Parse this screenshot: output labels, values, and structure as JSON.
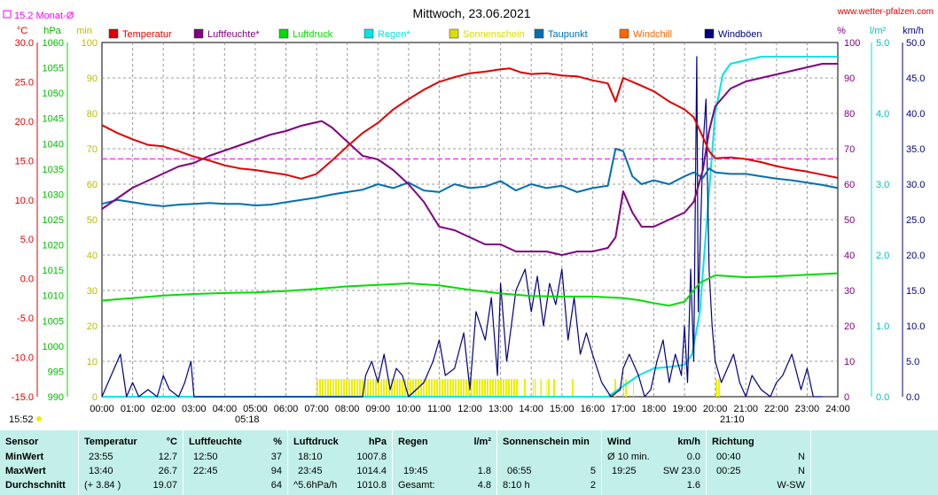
{
  "header": {
    "title": "Mittwoch, 23.06.2021",
    "website": "www.wetter-pfalzen.com",
    "monthly_avg_label": "15.2 Monat-Ø"
  },
  "units": {
    "temp": "°C",
    "pressure": "hPa",
    "sun": "min",
    "percent": "%",
    "rain": "l/m²",
    "wind": "km/h"
  },
  "legend": [
    {
      "label": "Temperatur",
      "color": "#e00000"
    },
    {
      "label": "Luftfeuchte*",
      "color": "#800080"
    },
    {
      "label": "Luftdruck",
      "color": "#00dd00"
    },
    {
      "label": "Regen*",
      "color": "#00e5e5"
    },
    {
      "label": "Sonnenschein",
      "color": "#dddd00"
    },
    {
      "label": "Taupunkt",
      "color": "#0070b0"
    },
    {
      "label": "Windchill",
      "color": "#ff6600"
    },
    {
      "label": "Windböen",
      "color": "#000080"
    }
  ],
  "annotations": {
    "sunrise": "05:18",
    "sunset": "21:10",
    "update_time": "15:52"
  },
  "chart_data": {
    "type": "line",
    "title": "Mittwoch, 23.06.2021",
    "x_labels": [
      "00:00",
      "01:00",
      "02:00",
      "03:00",
      "04:00",
      "05:00",
      "06:00",
      "07:00",
      "08:00",
      "09:00",
      "10:00",
      "11:00",
      "12:00",
      "13:00",
      "14:00",
      "15:00",
      "16:00",
      "17:00",
      "18:00",
      "19:00",
      "20:00",
      "21:00",
      "22:00",
      "23:00",
      "24:00"
    ],
    "axes": {
      "temp": {
        "unit": "°C",
        "range": [
          -15,
          30
        ],
        "ticks": [
          "30.0",
          "25.0",
          "20.0",
          "15.0",
          "10.0",
          "5.0",
          "0.0",
          "-5.0",
          "-10.0",
          "-15.0"
        ]
      },
      "pressure": {
        "unit": "hPa",
        "range": [
          990,
          1060
        ],
        "ticks": [
          "1060",
          "1055",
          "1050",
          "1045",
          "1040",
          "1035",
          "1030",
          "1025",
          "1020",
          "1015",
          "1010",
          "1005",
          "1000",
          "995",
          "990"
        ]
      },
      "sun": {
        "unit": "min",
        "range": [
          0,
          100
        ],
        "ticks": [
          "100",
          "90",
          "80",
          "70",
          "60",
          "50",
          "40",
          "30",
          "20",
          "10",
          "0"
        ]
      },
      "humidity": {
        "unit": "%",
        "range": [
          0,
          100
        ],
        "ticks": [
          "100",
          "90",
          "80",
          "70",
          "60",
          "50",
          "40",
          "30",
          "20",
          "10",
          "0"
        ]
      },
      "rain": {
        "unit": "l/m²",
        "range": [
          0,
          5
        ],
        "ticks": [
          "5.0",
          "4.0",
          "3.0",
          "2.0",
          "1.0",
          "0.0"
        ]
      },
      "wind": {
        "unit": "km/h",
        "range": [
          0,
          50
        ],
        "ticks": [
          "50.0",
          "45.0",
          "40.0",
          "35.0",
          "30.0",
          "25.0",
          "20.0",
          "15.0",
          "10.0",
          "5.0",
          "0.0"
        ]
      }
    },
    "monthly_avg_temp": 15.2,
    "series": [
      {
        "name": "Temperatur",
        "axis": "temp",
        "color": "#e00000",
        "x": [
          0,
          0.5,
          1,
          1.5,
          2,
          2.5,
          3,
          3.5,
          4,
          4.5,
          5,
          5.5,
          6,
          6.5,
          7,
          7.5,
          8,
          8.5,
          9,
          9.5,
          10,
          10.5,
          11,
          11.5,
          12,
          12.5,
          13,
          13.3,
          13.67,
          14,
          14.5,
          15,
          15.5,
          16,
          16.5,
          16.75,
          17,
          17.3,
          17.6,
          18,
          18.5,
          19,
          19.3,
          19.6,
          19.8,
          20,
          20.5,
          21,
          21.5,
          22,
          22.5,
          23,
          23.5,
          24
        ],
        "y": [
          19.5,
          18.5,
          17.7,
          17.0,
          16.8,
          16.2,
          15.5,
          15.0,
          14.4,
          14.0,
          13.8,
          13.5,
          13.2,
          12.7,
          13.3,
          15.0,
          16.8,
          18.5,
          19.8,
          21.5,
          22.8,
          24.0,
          25.0,
          25.6,
          26.1,
          26.3,
          26.6,
          26.7,
          26.2,
          26.0,
          26.1,
          25.8,
          25.7,
          25.2,
          24.8,
          22.5,
          25.5,
          25.0,
          24.5,
          23.8,
          22.5,
          21.5,
          20.5,
          18.0,
          16.2,
          15.3,
          15.4,
          15.2,
          14.8,
          14.3,
          13.9,
          13.6,
          13.2,
          12.8
        ]
      },
      {
        "name": "Luftfeuchte*",
        "axis": "humidity",
        "color": "#800080",
        "x": [
          0,
          0.5,
          1,
          1.5,
          2,
          2.5,
          3,
          3.5,
          4,
          4.5,
          5,
          5.5,
          6,
          6.5,
          7,
          7.17,
          7.5,
          8,
          8.5,
          9,
          9.5,
          10,
          10.5,
          11,
          11.5,
          12,
          12.5,
          13,
          13.5,
          14,
          14.5,
          15,
          15.5,
          16,
          16.5,
          16.75,
          17,
          17.3,
          17.6,
          18,
          18.5,
          19,
          19.3,
          19.6,
          19.8,
          20,
          20.5,
          21,
          21.5,
          22,
          22.5,
          23,
          23.5,
          24
        ],
        "y": [
          53,
          56,
          59,
          61,
          63,
          65,
          66,
          68,
          69.5,
          71,
          72.5,
          74,
          75,
          76.5,
          77.5,
          77.8,
          76,
          72,
          68,
          67,
          64,
          60,
          55,
          48,
          47,
          45,
          43,
          43,
          41,
          41,
          41,
          40,
          41,
          41,
          42,
          45,
          58,
          52,
          48,
          48,
          50,
          52,
          55,
          64,
          75,
          82,
          87,
          89,
          90,
          91,
          92,
          93,
          94,
          94
        ]
      },
      {
        "name": "Luftdruck",
        "axis": "pressure",
        "color": "#00dd00",
        "x": [
          0,
          1,
          2,
          3,
          4,
          5,
          6,
          7,
          8,
          9,
          10,
          11,
          12,
          13,
          14,
          15,
          16,
          17,
          17.5,
          18,
          18.5,
          19,
          19.5,
          20,
          21,
          22,
          23,
          24
        ],
        "y": [
          1009.0,
          1009.5,
          1010.0,
          1010.3,
          1010.5,
          1010.6,
          1010.9,
          1011.3,
          1011.8,
          1012.1,
          1012.4,
          1012.0,
          1011.1,
          1010.4,
          1009.9,
          1009.8,
          1009.8,
          1009.5,
          1009.1,
          1008.5,
          1008.0,
          1008.8,
          1012.5,
          1014.0,
          1013.6,
          1013.8,
          1014.1,
          1014.4
        ]
      },
      {
        "name": "Regen*",
        "axis": "rain",
        "color": "#00e5e5",
        "x": [
          0,
          16.5,
          17,
          17.5,
          18,
          18.5,
          19,
          19.25,
          19.5,
          19.75,
          20,
          20.25,
          20.5,
          21,
          21.5,
          22,
          23,
          24
        ],
        "y": [
          0,
          0,
          0.15,
          0.3,
          0.4,
          0.42,
          0.45,
          0.6,
          1.2,
          2.6,
          4.0,
          4.55,
          4.7,
          4.75,
          4.8,
          4.8,
          4.8,
          4.8
        ]
      },
      {
        "name": "Taupunkt",
        "axis": "temp",
        "color": "#0070b0",
        "x": [
          0,
          0.5,
          1,
          1.5,
          2,
          2.5,
          3,
          3.5,
          4,
          4.5,
          5,
          5.5,
          6,
          6.5,
          7,
          7.5,
          8,
          8.5,
          9,
          9.5,
          10,
          10.5,
          11,
          11.5,
          12,
          12.5,
          13,
          13.5,
          14,
          14.5,
          15,
          15.5,
          16,
          16.5,
          16.75,
          17,
          17.3,
          17.6,
          18,
          18.5,
          19,
          19.3,
          19.6,
          19.8,
          20,
          20.5,
          21,
          21.5,
          22,
          22.5,
          23,
          23.5,
          24
        ],
        "y": [
          9.5,
          10.0,
          9.7,
          9.4,
          9.2,
          9.4,
          9.5,
          9.6,
          9.5,
          9.5,
          9.3,
          9.4,
          9.7,
          10.0,
          10.3,
          10.7,
          11.0,
          11.3,
          12.0,
          11.5,
          12.2,
          11.2,
          11.0,
          12.0,
          11.5,
          11.7,
          12.4,
          11.2,
          12.0,
          11.5,
          11.8,
          11.0,
          11.5,
          11.8,
          16.5,
          16.2,
          13.0,
          12.0,
          12.5,
          12.0,
          13.0,
          13.5,
          12.8,
          14.0,
          13.5,
          13.3,
          13.3,
          13.0,
          12.7,
          12.5,
          12.2,
          11.9,
          11.5
        ]
      },
      {
        "name": "Windböen",
        "axis": "wind",
        "color": "#000080",
        "x": [
          0,
          0.3,
          0.6,
          0.8,
          1.0,
          1.2,
          1.5,
          1.8,
          2.0,
          2.2,
          2.5,
          2.7,
          2.9,
          3.0,
          8.5,
          8.6,
          8.8,
          9.0,
          9.2,
          9.4,
          9.6,
          9.8,
          10.0,
          10.5,
          10.8,
          11.0,
          11.2,
          11.5,
          11.8,
          12.0,
          12.2,
          12.5,
          12.7,
          12.9,
          13.0,
          13.2,
          13.5,
          13.8,
          14.0,
          14.2,
          14.4,
          14.6,
          14.8,
          15.0,
          15.2,
          15.4,
          15.6,
          15.8,
          16.0,
          16.3,
          16.6,
          16.9,
          17.0,
          17.2,
          17.5,
          17.7,
          17.9,
          18.1,
          18.3,
          18.5,
          18.7,
          18.9,
          19.0,
          19.1,
          19.2,
          19.3,
          19.4,
          19.45,
          19.5,
          19.6,
          19.7,
          19.8,
          19.9,
          20.0,
          20.2,
          20.4,
          20.6,
          20.8,
          21.0,
          21.2,
          21.5,
          21.8,
          22.0,
          22.2,
          22.5,
          22.8,
          23.0,
          23.2,
          23.5
        ],
        "y": [
          0,
          3,
          6,
          0,
          2,
          0,
          1,
          0,
          3,
          1,
          0,
          2,
          5,
          0,
          0,
          3,
          5,
          2,
          6,
          1,
          4,
          3,
          0,
          2,
          5,
          8,
          3,
          4,
          9,
          1,
          12,
          8,
          14,
          3,
          16,
          5,
          15,
          18,
          12,
          17,
          10,
          16,
          13,
          18,
          8,
          14,
          6,
          9,
          6,
          2,
          0,
          1,
          4,
          6,
          3,
          0,
          1,
          5,
          8,
          2,
          6,
          3,
          10,
          2,
          18,
          5,
          48,
          12,
          20,
          35,
          42,
          18,
          10,
          5,
          2,
          4,
          6,
          2,
          0,
          3,
          1,
          0,
          2,
          3,
          6,
          1,
          4,
          0,
          0
        ]
      }
    ],
    "sunshine_bars": [
      [
        7.0,
        13.6
      ],
      [
        13.75,
        13.85
      ],
      [
        14.05,
        14.15
      ],
      [
        14.3,
        14.35
      ],
      [
        14.5,
        14.6
      ],
      [
        14.7,
        14.8
      ],
      [
        15.3,
        15.4
      ],
      [
        16.7,
        16.8
      ],
      [
        17.0,
        17.15
      ],
      [
        17.3,
        17.35
      ],
      [
        20.0,
        20.15
      ]
    ],
    "legend_position": "top"
  },
  "stats": {
    "headers": {
      "sensor": "Sensor",
      "temp": "Temperatur",
      "temp_unit": "°C",
      "hum": "Luftfeuchte",
      "hum_unit": "%",
      "press": "Luftdruck",
      "press_unit": "hPa",
      "rain": "Regen",
      "rain_unit": "l/m²",
      "sun": "Sonnenschein min",
      "wind": "Wind",
      "wind_unit": "km/h",
      "dir": "Richtung"
    },
    "rows": [
      {
        "label": "MinWert",
        "temp_time": "23:55",
        "temp_val": "12.7",
        "hum_time": "12:50",
        "hum_val": "37",
        "press_time": "18:10",
        "press_val": "1007.8",
        "rain_time": "",
        "rain_val": "",
        "sun_time": "",
        "sun_val": "",
        "wind_time": "Ø 10 min.",
        "wind_val": "0.0",
        "dir_time": "00:40",
        "dir_val": "N"
      },
      {
        "label": "MaxWert",
        "temp_time": "13:40",
        "temp_val": "26.7",
        "hum_time": "22:45",
        "hum_val": "94",
        "press_time": "23:45",
        "press_val": "1014.4",
        "rain_time": "19:45",
        "rain_val": "1.8",
        "sun_time": "06:55",
        "sun_val": "5",
        "wind_time": "19:25",
        "wind_val": "SW 23.0",
        "dir_time": "00:25",
        "dir_val": "N"
      },
      {
        "label": "Durchschnitt",
        "temp_time": "(+ 3.84 )",
        "temp_val": "19.07",
        "hum_time": "",
        "hum_val": "64",
        "press_time": "^5.6hPa/h",
        "press_val": "1010.8",
        "rain_time": "Gesamt:",
        "rain_val": "4.8",
        "sun_time": "8:10 h",
        "sun_val": "2",
        "wind_time": "",
        "wind_val": "1.6",
        "dir_time": "",
        "dir_val": "W-SW"
      }
    ]
  }
}
